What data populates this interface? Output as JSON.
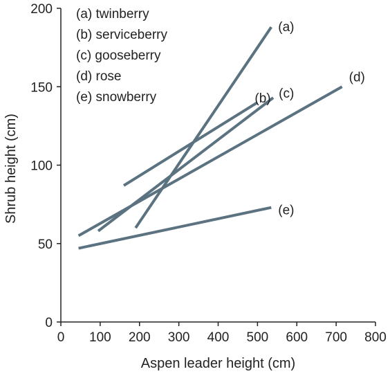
{
  "chart_data": {
    "type": "line",
    "xlabel": "Aspen leader height  (cm)",
    "ylabel": "Shrub height (cm)",
    "xlim": [
      0,
      800
    ],
    "ylim": [
      0,
      200
    ],
    "x_ticks": [
      "0",
      "100",
      "200",
      "300",
      "400",
      "500",
      "600",
      "700",
      "800"
    ],
    "y_ticks": [
      "0",
      "50",
      "100",
      "150",
      "200"
    ],
    "grid": false,
    "legend_position": "top-left",
    "legend": [
      "(a) twinberry",
      "(b) serviceberry",
      "(c) gooseberry",
      "(d) rose",
      "(e) snowberry"
    ],
    "line_color": "#5b7280",
    "series": [
      {
        "name": "(a)",
        "x": [
          190,
          535
        ],
        "y": [
          60,
          188
        ]
      },
      {
        "name": "(b)",
        "x": [
          160,
          500
        ],
        "y": [
          87,
          140
        ]
      },
      {
        "name": "(c)",
        "x": [
          95,
          540
        ],
        "y": [
          58,
          143
        ]
      },
      {
        "name": "(d)",
        "x": [
          45,
          715
        ],
        "y": [
          55,
          150
        ]
      },
      {
        "name": "(e)",
        "x": [
          45,
          535
        ],
        "y": [
          47,
          73
        ]
      }
    ]
  }
}
